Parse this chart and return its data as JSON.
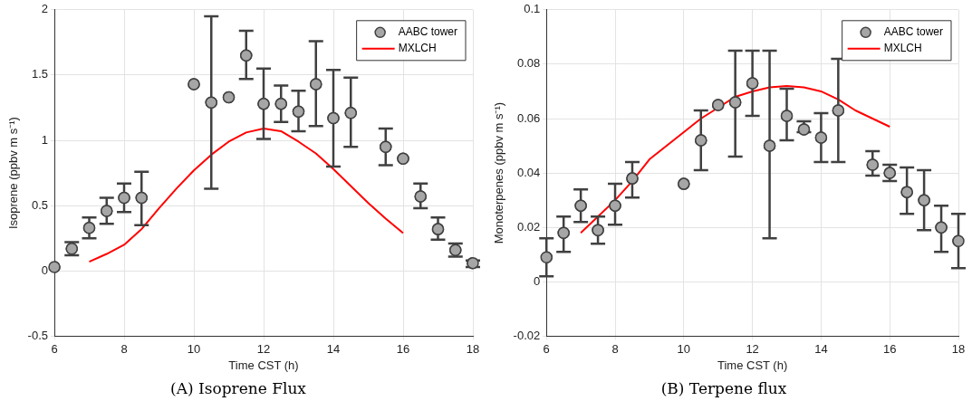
{
  "chart_data": [
    {
      "type": "scatter",
      "title": "(A) Isoprene Flux",
      "xlabel": "Time CST (h)",
      "ylabel": "Isoprene (ppbv m s⁻¹)",
      "xlim": [
        6,
        18
      ],
      "xticks": [
        6,
        8,
        10,
        12,
        14,
        16,
        18
      ],
      "ylim": [
        -0.5,
        2
      ],
      "yticks": [
        -0.5,
        0,
        0.5,
        1,
        1.5,
        2
      ],
      "grid": true,
      "legend": "top right",
      "marker": "circle",
      "series": [
        {
          "name": "AABC tower",
          "color": "#a6a6a6",
          "x": [
            6,
            6.5,
            7,
            7.5,
            8,
            8.5,
            10,
            10.5,
            11,
            11.5,
            12,
            12.5,
            13,
            13.5,
            14,
            14.5,
            15.5,
            16,
            16.5,
            17,
            17.5,
            18
          ],
          "values": [
            0.03,
            0.17,
            0.33,
            0.46,
            0.56,
            0.56,
            1.43,
            1.29,
            1.33,
            1.65,
            1.28,
            1.28,
            1.22,
            1.43,
            1.17,
            1.21,
            0.95,
            0.86,
            0.57,
            0.32,
            0.16,
            0.06
          ],
          "errors": [
            null,
            [
              0.12,
              0.22
            ],
            [
              0.25,
              0.41
            ],
            [
              0.36,
              0.56
            ],
            [
              0.45,
              0.67
            ],
            [
              0.35,
              0.76
            ],
            null,
            [
              0.63,
              1.95
            ],
            null,
            [
              1.47,
              1.84
            ],
            [
              1.01,
              1.55
            ],
            [
              1.14,
              1.42
            ],
            [
              1.07,
              1.38
            ],
            [
              1.11,
              1.76
            ],
            [
              0.8,
              1.54
            ],
            [
              0.95,
              1.48
            ],
            [
              0.81,
              1.09
            ],
            null,
            [
              0.48,
              0.67
            ],
            [
              0.24,
              0.41
            ],
            [
              0.11,
              0.21
            ],
            [
              0.03,
              0.08
            ]
          ]
        },
        {
          "name": "MXLCH",
          "type": "line",
          "marker": "none",
          "color": "#ff0000",
          "x": [
            7,
            7.5,
            8,
            8.5,
            9,
            9.5,
            10,
            10.5,
            11,
            11.5,
            12,
            12.5,
            13,
            13.5,
            14,
            14.5,
            15,
            15.5,
            16
          ],
          "values": [
            0.07,
            0.13,
            0.2,
            0.32,
            0.48,
            0.63,
            0.77,
            0.89,
            0.99,
            1.06,
            1.09,
            1.07,
            0.99,
            0.9,
            0.78,
            0.65,
            0.52,
            0.4,
            0.29
          ]
        }
      ]
    },
    {
      "type": "scatter",
      "title": "(B) Terpene flux",
      "xlabel": "Time CST (h)",
      "ylabel": "Monoterpenes (ppbv m s⁻¹)",
      "xlim": [
        6,
        18
      ],
      "xticks": [
        6,
        8,
        10,
        12,
        14,
        16,
        18
      ],
      "ylim": [
        -0.02,
        0.1
      ],
      "yticks": [
        -0.02,
        0,
        0.02,
        0.04,
        0.06,
        0.08,
        0.1
      ],
      "grid": true,
      "legend": "top right",
      "marker": "circle",
      "series": [
        {
          "name": "AABC tower",
          "color": "#a6a6a6",
          "x": [
            6,
            6.5,
            7,
            7.5,
            8,
            8.5,
            10,
            10.5,
            11,
            11.5,
            12,
            12.5,
            13,
            13.5,
            14,
            14.5,
            15.5,
            16,
            16.5,
            17,
            17.5,
            18
          ],
          "values": [
            0.009,
            0.018,
            0.028,
            0.019,
            0.028,
            0.038,
            0.036,
            0.052,
            0.065,
            0.066,
            0.073,
            0.05,
            0.061,
            0.056,
            0.053,
            0.063,
            0.043,
            0.04,
            0.033,
            0.03,
            0.02,
            0.015
          ],
          "errors": [
            [
              0.002,
              0.016
            ],
            [
              0.011,
              0.024
            ],
            [
              0.022,
              0.034
            ],
            [
              0.014,
              0.024
            ],
            [
              0.021,
              0.036
            ],
            [
              0.031,
              0.044
            ],
            null,
            [
              0.041,
              0.063
            ],
            null,
            [
              0.046,
              0.085
            ],
            [
              0.061,
              0.085
            ],
            [
              0.016,
              0.085
            ],
            [
              0.052,
              0.071
            ],
            [
              0.055,
              0.059
            ],
            [
              0.044,
              0.062
            ],
            [
              0.044,
              0.082
            ],
            [
              0.039,
              0.048
            ],
            [
              0.037,
              0.043
            ],
            [
              0.025,
              0.042
            ],
            [
              0.019,
              0.041
            ],
            [
              0.011,
              0.028
            ],
            [
              0.005,
              0.025
            ]
          ]
        },
        {
          "name": "MXLCH",
          "type": "line",
          "marker": "none",
          "color": "#ff0000",
          "x": [
            7,
            7.5,
            8,
            8.5,
            9,
            9.5,
            10,
            10.5,
            11,
            11.5,
            12,
            12.5,
            13,
            13.5,
            14,
            14.5,
            15,
            15.5,
            16
          ],
          "values": [
            0.018,
            0.024,
            0.03,
            0.037,
            0.045,
            0.05,
            0.055,
            0.06,
            0.064,
            0.068,
            0.07,
            0.0715,
            0.072,
            0.0715,
            0.07,
            0.067,
            0.063,
            0.06,
            0.057
          ]
        }
      ]
    }
  ]
}
